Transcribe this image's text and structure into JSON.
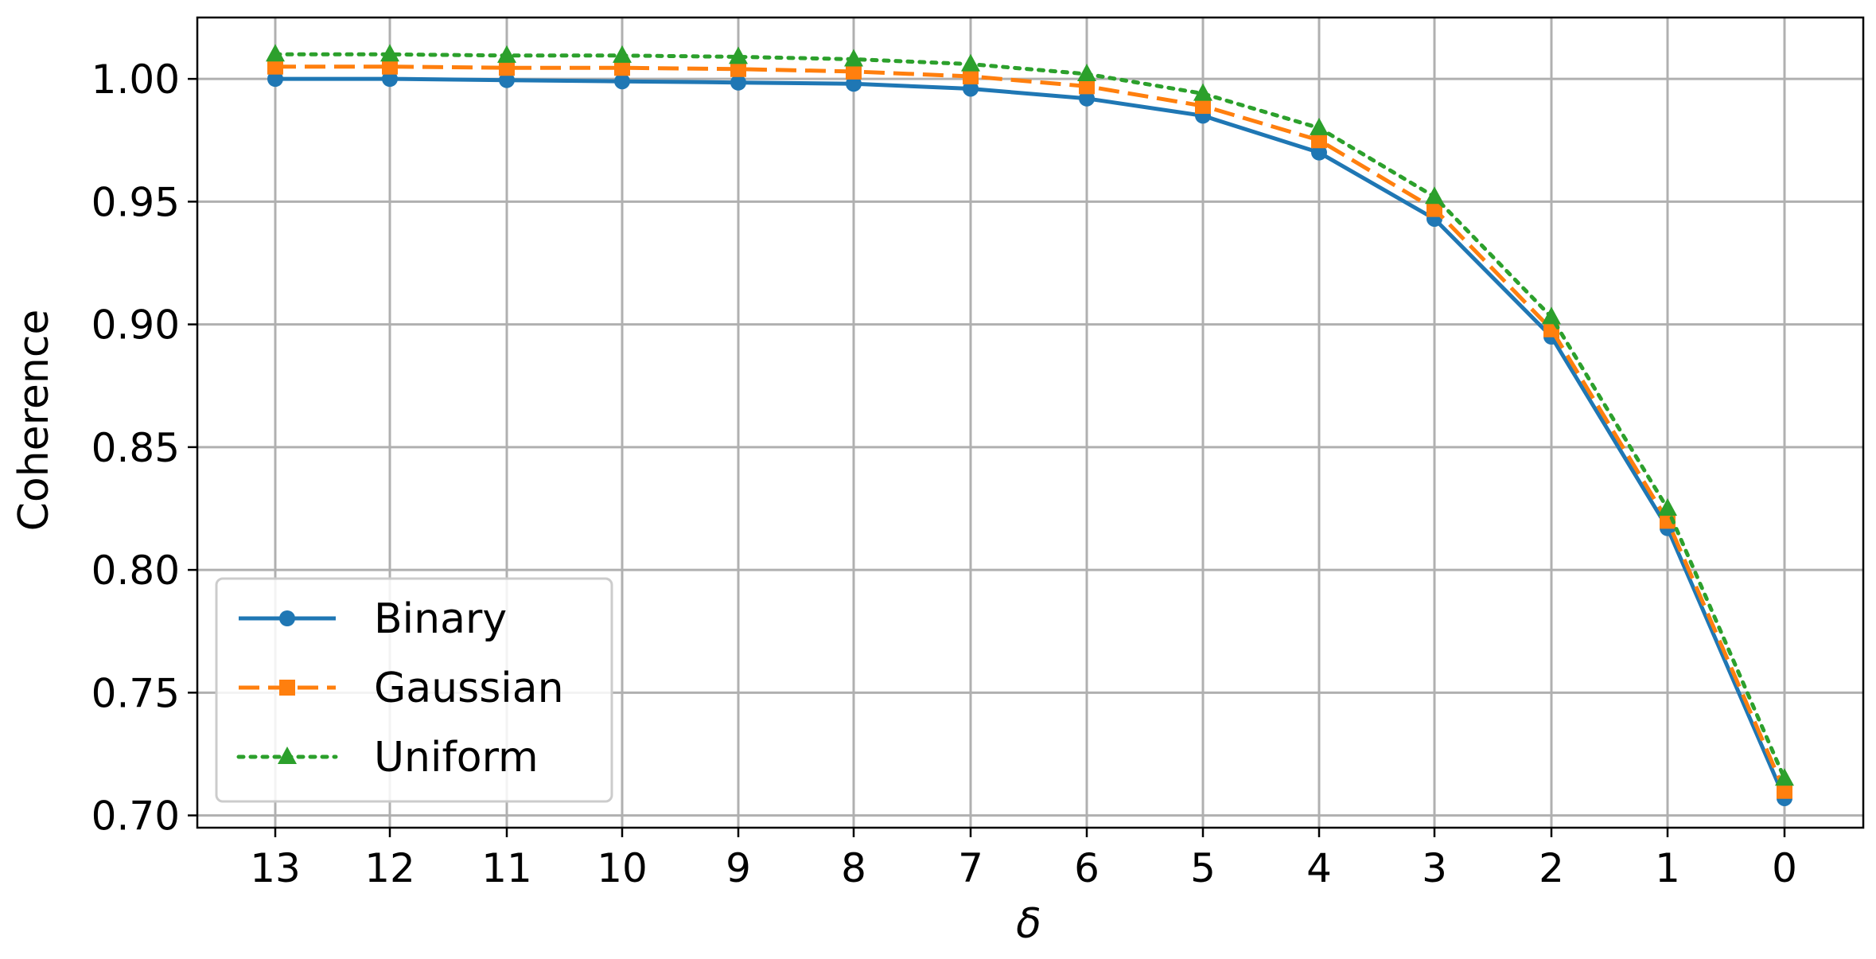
{
  "chart_data": {
    "type": "line",
    "xlabel": "δ",
    "ylabel": "Coherence",
    "x": [
      "13",
      "12",
      "11",
      "10",
      "9",
      "8",
      "7",
      "6",
      "5",
      "4",
      "3",
      "2",
      "1",
      "0"
    ],
    "series": [
      {
        "name": "Binary",
        "color": "#1f77b4",
        "line_style": "solid",
        "marker": "circle",
        "values": [
          1.0,
          1.0,
          0.9995,
          0.999,
          0.9985,
          0.998,
          0.996,
          0.992,
          0.985,
          0.97,
          0.943,
          0.895,
          0.817,
          0.707
        ]
      },
      {
        "name": "Gaussian",
        "color": "#ff7f0e",
        "line_style": "dashed",
        "marker": "square",
        "values": [
          1.005,
          1.005,
          1.0045,
          1.0045,
          1.004,
          1.003,
          1.001,
          0.997,
          0.989,
          0.975,
          0.947,
          0.898,
          0.82,
          0.71
        ]
      },
      {
        "name": "Uniform",
        "color": "#2ca02c",
        "line_style": "dotted",
        "marker": "triangle",
        "values": [
          1.01,
          1.01,
          1.0095,
          1.0095,
          1.009,
          1.008,
          1.006,
          1.002,
          0.994,
          0.98,
          0.952,
          0.903,
          0.825,
          0.715
        ]
      }
    ],
    "yticks": [
      "0.70",
      "0.75",
      "0.80",
      "0.85",
      "0.90",
      "0.95",
      "1.00"
    ],
    "ylim": [
      0.695,
      1.025
    ],
    "grid": true,
    "legend_position": "lower-left"
  }
}
